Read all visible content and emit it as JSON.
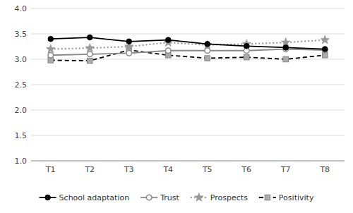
{
  "chart_data": {
    "type": "line",
    "categories": [
      "T1",
      "T2",
      "T3",
      "T4",
      "T5",
      "T6",
      "T7",
      "T8"
    ],
    "series": [
      {
        "name": "School adaptation",
        "color": "#000000",
        "marker": "circle",
        "line_style": "solid",
        "values": [
          3.4,
          3.43,
          3.35,
          3.38,
          3.3,
          3.26,
          3.23,
          3.2
        ]
      },
      {
        "name": "Trust",
        "color": "#888888",
        "marker": "open-circle",
        "line_style": "solid",
        "values": [
          3.08,
          3.1,
          3.12,
          3.17,
          3.17,
          3.17,
          3.2,
          3.18
        ]
      },
      {
        "name": "Prospects",
        "color": "#999999",
        "marker": "star",
        "line_style": "dotted",
        "values": [
          3.2,
          3.22,
          3.25,
          3.33,
          3.28,
          3.3,
          3.33,
          3.38
        ]
      },
      {
        "name": "Positivity",
        "color": "#000000",
        "marker": "square",
        "line_style": "dashed",
        "values": [
          2.98,
          2.97,
          3.18,
          3.08,
          3.02,
          3.04,
          3.0,
          3.08
        ]
      }
    ],
    "ylim": [
      1.0,
      4.0
    ],
    "yticks": [
      {
        "value": 1.0,
        "label": "1.0"
      },
      1.5,
      {
        "value": 2.0,
        "label": "2.0"
      },
      2.5,
      {
        "value": 3.0,
        "label": "3.0"
      },
      3.5,
      {
        "value": 4.0,
        "label": "4.0"
      }
    ],
    "grid": true,
    "legend": "bottom"
  }
}
